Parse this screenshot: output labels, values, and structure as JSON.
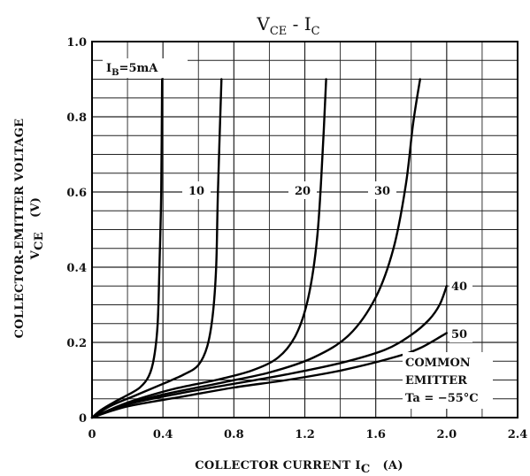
{
  "chart_data": {
    "type": "line",
    "title_main_1": "V",
    "title_sub_1": "CE",
    "title_mid": " - I",
    "title_sub_2": "C",
    "xlabel_main": "COLLECTOR CURRENT  I",
    "xlabel_sub": "C",
    "xlabel_unit": "(A)",
    "ylabel_line1": "COLLECTOR-EMITTER VOLTAGE",
    "ylabel_main": "V",
    "ylabel_sub": "CE",
    "ylabel_unit": "(V)",
    "xlim": [
      0,
      2.4
    ],
    "ylim": [
      0,
      1.0
    ],
    "x_ticks": [
      "0",
      "0.4",
      "0.8",
      "1.2",
      "1.6",
      "2.0",
      "2.4"
    ],
    "y_ticks": [
      "0",
      "0.2",
      "0.4",
      "0.6",
      "0.8",
      "1.0"
    ],
    "grid": true,
    "labels": {
      "ib_prefix": "I",
      "ib_sub": "B",
      "ib_rest": "=5mA",
      "s10": "10",
      "s20": "20",
      "s30": "30",
      "s40": "40",
      "s50": "50"
    },
    "note": {
      "line1": "COMMON",
      "line2": "EMITTER",
      "line3": "Ta = −55°C"
    },
    "series": [
      {
        "name": "5mA",
        "points": [
          [
            0,
            0
          ],
          [
            0.05,
            0.02
          ],
          [
            0.12,
            0.04
          ],
          [
            0.2,
            0.06
          ],
          [
            0.27,
            0.08
          ],
          [
            0.32,
            0.11
          ],
          [
            0.35,
            0.16
          ],
          [
            0.37,
            0.25
          ],
          [
            0.38,
            0.4
          ],
          [
            0.39,
            0.6
          ],
          [
            0.395,
            0.9
          ]
        ]
      },
      {
        "name": "10",
        "points": [
          [
            0,
            0
          ],
          [
            0.1,
            0.03
          ],
          [
            0.25,
            0.06
          ],
          [
            0.4,
            0.09
          ],
          [
            0.52,
            0.115
          ],
          [
            0.6,
            0.14
          ],
          [
            0.65,
            0.19
          ],
          [
            0.68,
            0.27
          ],
          [
            0.7,
            0.4
          ],
          [
            0.71,
            0.6
          ],
          [
            0.73,
            0.9
          ]
        ]
      },
      {
        "name": "20",
        "points": [
          [
            0,
            0
          ],
          [
            0.2,
            0.04
          ],
          [
            0.45,
            0.075
          ],
          [
            0.7,
            0.1
          ],
          [
            0.9,
            0.125
          ],
          [
            1.05,
            0.16
          ],
          [
            1.15,
            0.22
          ],
          [
            1.22,
            0.32
          ],
          [
            1.27,
            0.48
          ],
          [
            1.3,
            0.7
          ],
          [
            1.32,
            0.9
          ]
        ]
      },
      {
        "name": "30",
        "points": [
          [
            0,
            0
          ],
          [
            0.3,
            0.05
          ],
          [
            0.7,
            0.09
          ],
          [
            1.0,
            0.12
          ],
          [
            1.25,
            0.16
          ],
          [
            1.45,
            0.22
          ],
          [
            1.6,
            0.32
          ],
          [
            1.7,
            0.45
          ],
          [
            1.77,
            0.62
          ],
          [
            1.81,
            0.78
          ],
          [
            1.85,
            0.9
          ]
        ]
      },
      {
        "name": "40",
        "points": [
          [
            0,
            0
          ],
          [
            0.2,
            0.035
          ],
          [
            0.5,
            0.065
          ],
          [
            0.8,
            0.09
          ],
          [
            1.1,
            0.115
          ],
          [
            1.4,
            0.145
          ],
          [
            1.65,
            0.18
          ],
          [
            1.8,
            0.22
          ],
          [
            1.9,
            0.26
          ],
          [
            1.96,
            0.3
          ],
          [
            2.0,
            0.35
          ]
        ]
      },
      {
        "name": "50",
        "points": [
          [
            0,
            0
          ],
          [
            0.2,
            0.03
          ],
          [
            0.5,
            0.055
          ],
          [
            0.8,
            0.08
          ],
          [
            1.1,
            0.1
          ],
          [
            1.4,
            0.125
          ],
          [
            1.7,
            0.16
          ],
          [
            1.85,
            0.185
          ],
          [
            2.0,
            0.225
          ]
        ]
      }
    ]
  }
}
